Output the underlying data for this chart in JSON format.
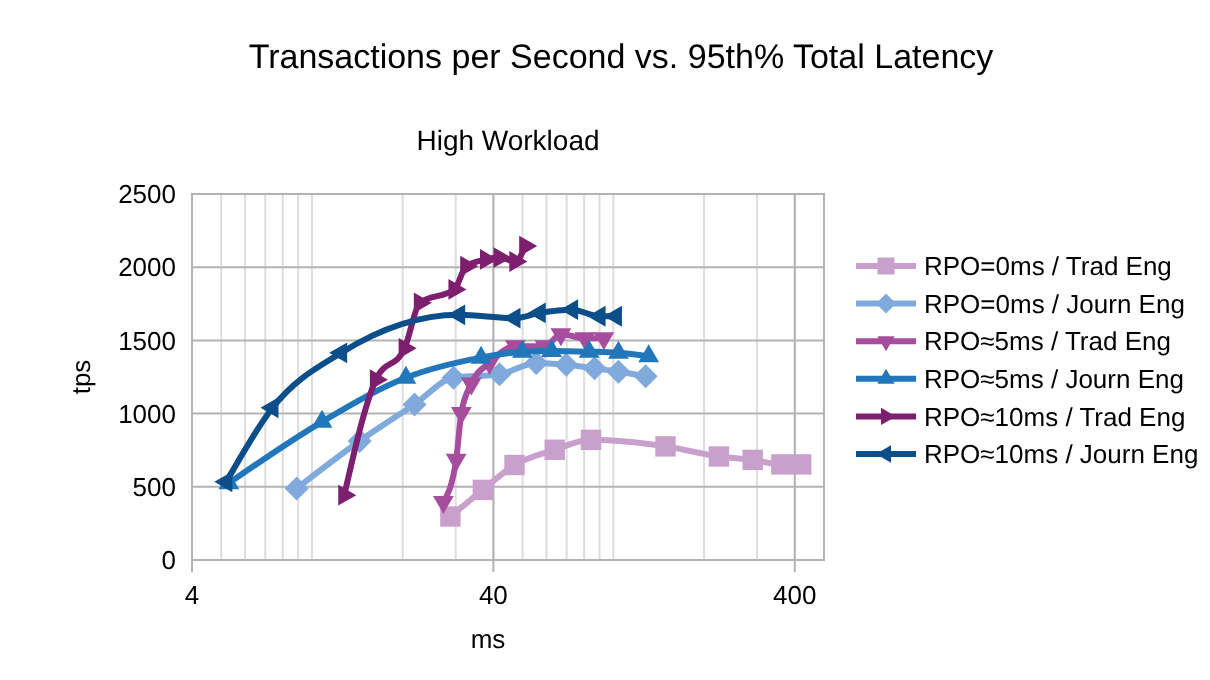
{
  "chart_data": {
    "type": "line",
    "title": "Transactions per Second vs. 95th% Total Latency",
    "subtitle": "High Workload",
    "xlabel": "ms",
    "ylabel": "tps",
    "log": "x",
    "xlim": [
      4,
      500
    ],
    "xticks": [
      4,
      40,
      400
    ],
    "ylim": [
      0,
      2500
    ],
    "yticks": [
      0,
      500,
      1000,
      1500,
      2000,
      2500
    ],
    "grid": true,
    "legend": "right",
    "series": [
      {
        "name": "RPO=0ms / Trad Eng",
        "color": "#c9a0cc",
        "marker": "square",
        "x": [
          28.8,
          36.9,
          47,
          63.9,
          84.3,
          149,
          224,
          290,
          361,
          420
        ],
        "values": [
          297,
          479,
          649,
          753,
          821,
          776,
          707,
          684,
          653,
          653
        ]
      },
      {
        "name": "RPO=0ms / Journ Eng",
        "color": "#7faadb",
        "marker": "diamond",
        "x": [
          8.9,
          14.4,
          21.9,
          29.5,
          41.9,
          55.5,
          69.8,
          86.7,
          104,
          128
        ],
        "values": [
          489,
          813,
          1063,
          1245,
          1268,
          1346,
          1333,
          1309,
          1286,
          1255
        ]
      },
      {
        "name": "RPO≈5ms / Trad Eng",
        "color": "#a64d9e",
        "marker": "triangle-down",
        "x": [
          27.3,
          30.1,
          31.3,
          33.8,
          38.8,
          47.3,
          59.3,
          67,
          80.5,
          93
        ],
        "values": [
          397,
          684,
          1004,
          1205,
          1346,
          1460,
          1460,
          1542,
          1515,
          1515
        ]
      },
      {
        "name": "RPO≈5ms / Journ Eng",
        "color": "#2277bb",
        "marker": "triangle",
        "x": [
          5.3,
          10.8,
          20.5,
          36.4,
          49.9,
          62.4,
          83.1,
          104,
          131
        ],
        "values": [
          525,
          944,
          1245,
          1382,
          1423,
          1428,
          1423,
          1415,
          1392
        ]
      },
      {
        "name": "RPO≈10ms / Trad Eng",
        "color": "#7e1e6e",
        "marker": "triangle-right",
        "x": [
          12.8,
          16.3,
          20.3,
          22.8,
          29.7,
          32.5,
          37.8,
          41.9,
          47.3,
          51
        ],
        "values": [
          443,
          1232,
          1446,
          1757,
          1848,
          2007,
          2053,
          2066,
          2039,
          2144
        ]
      },
      {
        "name": "RPO≈10ms / Journ Eng",
        "color": "#0c4e8a",
        "marker": "triangle-left",
        "x": [
          5.2,
          7.4,
          12.5,
          30.8,
          47,
          57,
          73,
          90,
          102
        ],
        "values": [
          534,
          1040,
          1415,
          1675,
          1652,
          1688,
          1710,
          1665,
          1665
        ]
      }
    ]
  }
}
